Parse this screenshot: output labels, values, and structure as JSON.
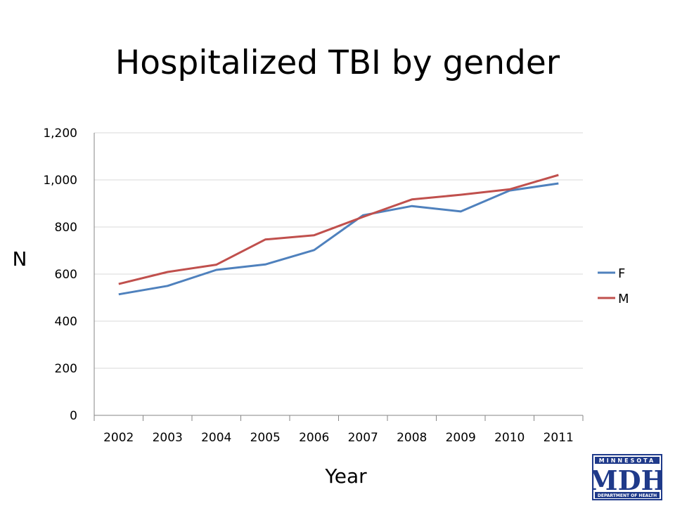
{
  "slide": {
    "title": "Hospitalized TBI by gender"
  },
  "logo": {
    "top_text": "MINNESOTA",
    "main_text": "MDH",
    "bottom_text": "DEPARTMENT OF HEALTH",
    "color": "#1f3a8a"
  },
  "chart_data": {
    "type": "line",
    "title": "Hospitalized TBI by gender",
    "xlabel": "Year",
    "ylabel": "N",
    "categories": [
      "2002",
      "2003",
      "2004",
      "2005",
      "2006",
      "2007",
      "2008",
      "2009",
      "2010",
      "2011"
    ],
    "ylim": [
      0,
      1200
    ],
    "yticks": [
      0,
      200,
      400,
      600,
      800,
      1000,
      1200
    ],
    "ytick_labels": [
      "0",
      "200",
      "400",
      "600",
      "800",
      "1,000",
      "1,200"
    ],
    "grid": true,
    "legend_position": "right",
    "series": [
      {
        "name": "F",
        "color": "#4f81bd",
        "values": [
          514,
          550,
          618,
          641,
          702,
          850,
          889,
          866,
          955,
          985
        ]
      },
      {
        "name": "M",
        "color": "#c0504d",
        "values": [
          558,
          609,
          640,
          747,
          765,
          843,
          917,
          937,
          960,
          1021
        ]
      }
    ]
  }
}
